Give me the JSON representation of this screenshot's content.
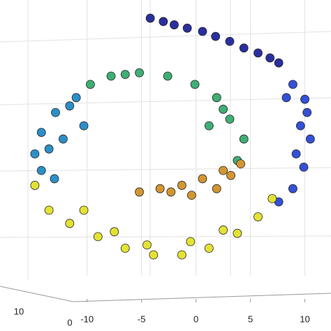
{
  "chart_data": {
    "type": "scatter",
    "xlim": [
      -18,
      12.4
    ],
    "xticks": [
      -10,
      -5,
      0,
      5,
      10
    ],
    "ylim": [
      -10,
      10
    ],
    "zticks": [
      10,
      0
    ],
    "grid": true,
    "series": [
      {
        "color": "#2b2f9e",
        "x": [
          -4.2,
          -3.0,
          -2.0,
          -0.8,
          0.6,
          1.8,
          3.1,
          4.4,
          5.7,
          6.8,
          7.6
        ],
        "values": [
          8.9,
          8.7,
          8.5,
          8.3,
          8.1,
          7.8,
          7.5,
          7.1,
          6.8,
          6.5,
          6.2
        ]
      },
      {
        "color": "#3450d6",
        "x": [
          8.9,
          8.3,
          10.2,
          10.5,
          9.2,
          9.9,
          8.9,
          7.6,
          9.6,
          10.0
        ],
        "values": [
          4.9,
          4.1,
          3.2,
          1.6,
          0.7,
          -0.1,
          -1.4,
          -2.2,
          2.4,
          4.0
        ]
      },
      {
        "color": "#3fae74",
        "x": [
          -9.7,
          -7.8,
          -5.2,
          -2.6,
          -0.1,
          1.9,
          3.1,
          4.4,
          1.2,
          3.8,
          -6.5,
          2.5
        ],
        "values": [
          4.9,
          5.4,
          5.6,
          5.4,
          4.9,
          4.1,
          2.8,
          1.6,
          2.4,
          0.3,
          5.5,
          3.4
        ]
      },
      {
        "color": "#d29632",
        "x": [
          -5.2,
          -3.3,
          -1.3,
          0.6,
          2.5,
          4.1,
          -0.4,
          1.9,
          -2.3,
          3.2
        ],
        "values": [
          -1.6,
          -1.4,
          -1.2,
          -0.8,
          -0.3,
          0.1,
          -1.8,
          -1.4,
          -1.6,
          -0.6
        ]
      },
      {
        "color": "#2b8fc7",
        "x": [
          -11.0,
          -12.9,
          -14.2,
          -14.8,
          -14.2,
          -12.2,
          -11.6,
          -10.3,
          -13.5,
          -13.0
        ],
        "values": [
          4.1,
          3.2,
          2.0,
          0.7,
          -0.3,
          1.6,
          3.6,
          2.4,
          1.0,
          -0.8
        ]
      },
      {
        "color": "#e3e234",
        "x": [
          -14.8,
          -13.5,
          -11.6,
          -9.0,
          -6.5,
          -3.9,
          -1.3,
          1.2,
          3.8,
          5.7,
          7.0,
          -10.3,
          -7.5,
          -4.5,
          -0.5,
          2.5
        ],
        "values": [
          -1.2,
          -2.7,
          -3.5,
          -4.3,
          -5.0,
          -5.4,
          -5.4,
          -5.0,
          -4.1,
          -3.1,
          -2.0,
          -2.7,
          -4.0,
          -4.8,
          -4.6,
          -3.9
        ]
      }
    ]
  }
}
